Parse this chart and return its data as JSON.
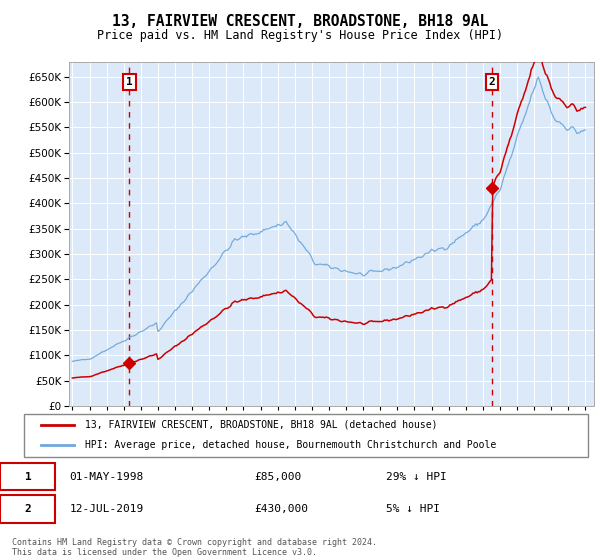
{
  "title": "13, FAIRVIEW CRESCENT, BROADSTONE, BH18 9AL",
  "subtitle": "Price paid vs. HM Land Registry's House Price Index (HPI)",
  "background_color": "#dce9f8",
  "sale1_date_x": 1998.33,
  "sale1_price": 85000,
  "sale2_date_x": 2019.54,
  "sale2_price": 430000,
  "legend_line1": "13, FAIRVIEW CRESCENT, BROADSTONE, BH18 9AL (detached house)",
  "legend_line2": "HPI: Average price, detached house, Bournemouth Christchurch and Poole",
  "annotation1_label": "1",
  "annotation1_text": "01-MAY-1998",
  "annotation1_price": "£85,000",
  "annotation1_hpi": "29% ↓ HPI",
  "annotation2_label": "2",
  "annotation2_text": "12-JUL-2019",
  "annotation2_price": "£430,000",
  "annotation2_hpi": "5% ↓ HPI",
  "footer": "Contains HM Land Registry data © Crown copyright and database right 2024.\nThis data is licensed under the Open Government Licence v3.0.",
  "ylim": [
    0,
    680000
  ],
  "xlim": [
    1994.8,
    2025.5
  ],
  "hpi_color": "#6fa8dc",
  "price_color": "#cc0000",
  "dashed_line_color": "#cc0000",
  "x_tick_years": [
    1995,
    1996,
    1997,
    1998,
    1999,
    2000,
    2001,
    2002,
    2003,
    2004,
    2005,
    2006,
    2007,
    2008,
    2009,
    2010,
    2011,
    2012,
    2013,
    2014,
    2015,
    2016,
    2017,
    2018,
    2019,
    2020,
    2021,
    2022,
    2023,
    2024,
    2025
  ]
}
